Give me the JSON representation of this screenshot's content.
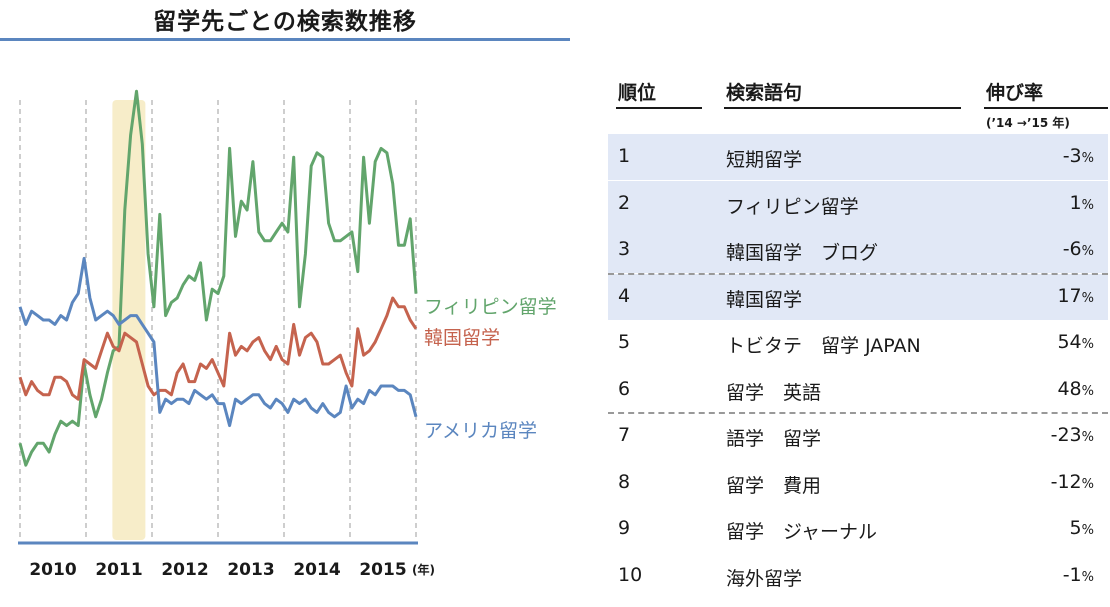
{
  "chart_data": {
    "type": "line",
    "title": "留学先ごとの検索数推移",
    "xlabel_unit": "(年)",
    "x_ticks": [
      "2010",
      "2011",
      "2012",
      "2013",
      "2014",
      "2015"
    ],
    "x_start": 2010.0,
    "x_end": 2016.0,
    "ylim": [
      0,
      100
    ],
    "highlight": {
      "from": 2011.4,
      "to": 2011.9,
      "color": "#f7edc9"
    },
    "grid": "vertical-dashed",
    "series": [
      {
        "name": "フィリピン留学",
        "color": "#62a56c",
        "values": [
          22,
          17,
          20,
          22,
          22,
          20,
          24,
          27,
          26,
          27,
          26,
          40,
          33,
          28,
          32,
          38,
          43,
          44,
          75,
          92,
          102,
          90,
          65,
          53,
          74,
          51,
          54,
          55,
          58,
          60,
          59,
          63,
          50,
          57,
          56,
          60,
          89,
          69,
          77,
          75,
          86,
          70,
          68,
          68,
          70,
          72,
          70,
          87,
          53,
          65,
          85,
          88,
          87,
          72,
          68,
          68,
          69,
          70,
          61,
          87,
          72,
          86,
          89,
          88,
          81,
          67,
          67,
          73,
          56
        ]
      },
      {
        "name": "韓国留学",
        "color": "#c5634e",
        "values": [
          37,
          33,
          36,
          34,
          33,
          33,
          37,
          37,
          36,
          33,
          32,
          41,
          40,
          39,
          43,
          47,
          44,
          43,
          47,
          46,
          45,
          40,
          35,
          33,
          34,
          34,
          33,
          38,
          40,
          36,
          36,
          40,
          39,
          41,
          38,
          35,
          47,
          42,
          44,
          43,
          45,
          46,
          43,
          41,
          44,
          41,
          40,
          49,
          42,
          46,
          47,
          45,
          40,
          40,
          41,
          42,
          38,
          35,
          48,
          42,
          43,
          45,
          48,
          51,
          55,
          53,
          53,
          50,
          48
        ]
      },
      {
        "name": "アメリカ留学",
        "color": "#5b86bf",
        "values": [
          53,
          49,
          52,
          51,
          50,
          50,
          49,
          51,
          50,
          54,
          56,
          64,
          55,
          50,
          51,
          52,
          51,
          49,
          50,
          51,
          51,
          49,
          47,
          45,
          29,
          32,
          31,
          32,
          32,
          31,
          34,
          33,
          32,
          33,
          31,
          31,
          26,
          32,
          31,
          32,
          33,
          33,
          31,
          30,
          32,
          31,
          29,
          32,
          31,
          32,
          30,
          29,
          31,
          29,
          28,
          29,
          35,
          30,
          32,
          31,
          34,
          33,
          35,
          35,
          35,
          34,
          34,
          33,
          28
        ]
      }
    ]
  },
  "table": {
    "headers": {
      "rank": "順位",
      "term": "検索語句",
      "growth": "伸び率",
      "growth_note": "(’14 →’15 年)"
    },
    "rows": [
      {
        "rank": "1",
        "term": "短期留学",
        "value": "-3",
        "unit": "%"
      },
      {
        "rank": "2",
        "term": "フィリピン留学",
        "value": "1",
        "unit": "%"
      },
      {
        "rank": "3",
        "term": "韓国留学　ブログ",
        "value": "-6",
        "unit": "%"
      },
      {
        "rank": "4",
        "term": "韓国留学",
        "value": "17",
        "unit": "%"
      },
      {
        "rank": "5",
        "term": "トビタテ　留学 JAPAN",
        "value": "54",
        "unit": "%"
      },
      {
        "rank": "6",
        "term": "留学　英語",
        "value": "48",
        "unit": "%"
      },
      {
        "rank": "7",
        "term": "語学　留学",
        "value": "-23",
        "unit": "%"
      },
      {
        "rank": "8",
        "term": "留学　費用",
        "value": "-12",
        "unit": "%"
      },
      {
        "rank": "9",
        "term": "留学　ジャーナル",
        "value": "5",
        "unit": "%"
      },
      {
        "rank": "10",
        "term": "海外留学",
        "value": "-1",
        "unit": "%"
      }
    ]
  }
}
